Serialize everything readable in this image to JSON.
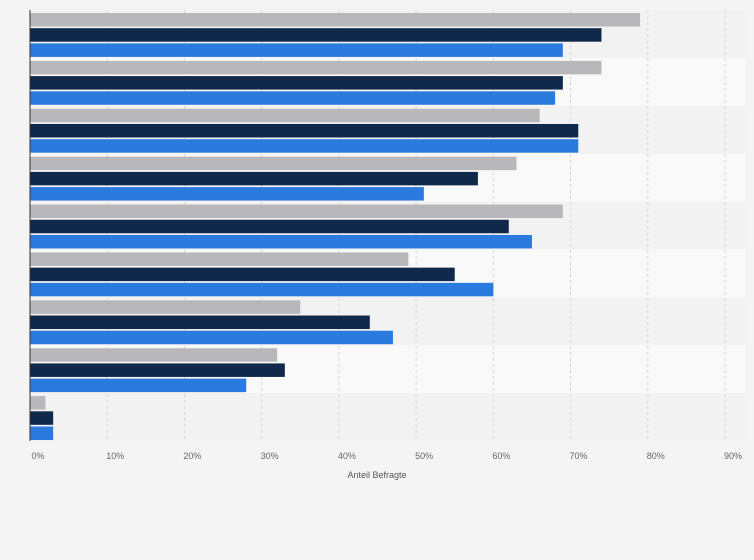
{
  "chart_data": {
    "type": "bar",
    "orientation": "horizontal",
    "categories": [
      "",
      "",
      "",
      "",
      "",
      "",
      "",
      "",
      ""
    ],
    "series": [
      {
        "color": "#b8b8ba",
        "values": [
          79,
          74,
          66,
          63,
          69,
          49,
          35,
          32,
          2
        ]
      },
      {
        "color": "#10294a",
        "values": [
          74,
          69,
          71,
          58,
          62,
          55,
          44,
          33,
          3
        ]
      },
      {
        "color": "#2b7ade",
        "values": [
          69,
          68,
          71,
          51,
          65,
          60,
          47,
          28,
          3
        ]
      }
    ],
    "xlim": [
      0,
      90
    ],
    "x_ticks": [
      0,
      10,
      20,
      30,
      40,
      50,
      60,
      70,
      80,
      90
    ],
    "x_tick_suffix": "%",
    "xlabel": "Anteil Befragte",
    "grid": true,
    "legend": "none"
  },
  "colors": {
    "background": "#f4f4f4",
    "band_light": "#f9f9f9",
    "band_dark": "#f2f2f2",
    "gridline": "#d6d6d6",
    "axis": "#333333"
  }
}
